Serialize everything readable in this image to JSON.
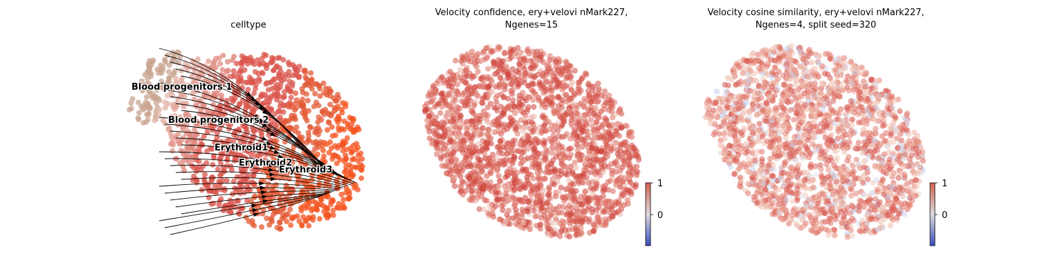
{
  "figure": {
    "background": "#ffffff"
  },
  "chart_data": [
    {
      "type": "scatter",
      "title": "celltype",
      "point_count": 1400,
      "has_velocity_streamlines": true,
      "axes_visible": false,
      "clusters": [
        {
          "name": "Blood progenitors 1",
          "color": "#c9a692"
        },
        {
          "name": "Blood progenitors 2",
          "color": "#e4b7ab"
        },
        {
          "name": "Erythroid1",
          "color": "#d9554c"
        },
        {
          "name": "Erythroid2",
          "color": "#e35a36"
        },
        {
          "name": "Erythroid3",
          "color": "#f4531f"
        }
      ]
    },
    {
      "type": "scatter",
      "title": "Velocity confidence, ery+velovi nMark227, Ngenes=15",
      "title_lines": [
        "Velocity confidence, ery+velovi nMark227,",
        "Ngenes=15"
      ],
      "point_count": 2000,
      "axes_visible": false,
      "colormap": "coolwarm",
      "colorbar": {
        "ticks": [
          "1",
          "0"
        ],
        "min": -1,
        "max": 1
      },
      "value_summary": "mostly near 1"
    },
    {
      "type": "scatter",
      "title": "Velocity cosine similarity, ery+velovi nMark227, Ngenes=4, split seed=320",
      "title_lines": [
        "Velocity cosine similarity, ery+velovi nMark227,",
        "Ngenes=4, split seed=320"
      ],
      "point_count": 2000,
      "axes_visible": false,
      "colormap": "coolwarm",
      "colorbar": {
        "ticks": [
          "1",
          "0"
        ],
        "min": -1,
        "max": 1
      },
      "value_summary": "mostly high with scattered low values"
    }
  ]
}
